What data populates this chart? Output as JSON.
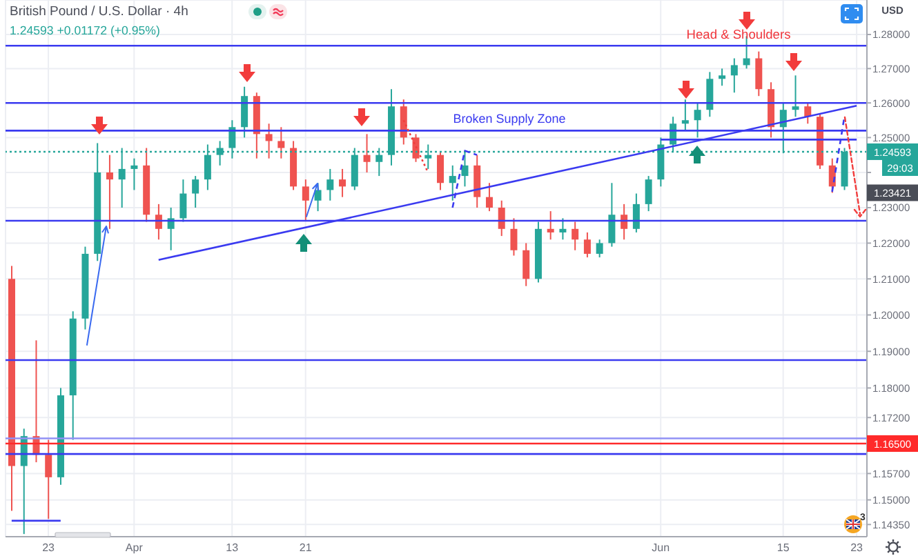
{
  "chart_data": {
    "type": "candlestick",
    "title": "British Pound / U.S. Dollar · 4h",
    "subtitle": "1.24593 +0.01172 (+0.95%)",
    "ylabel": "USD",
    "categories": [
      null,
      null,
      null,
      "23",
      null,
      null,
      null,
      null,
      null,
      null,
      "Apr",
      null,
      null,
      null,
      null,
      null,
      null,
      null,
      "13",
      null,
      null,
      null,
      null,
      null,
      "21",
      null,
      null,
      null,
      null,
      null,
      null,
      null,
      null,
      null,
      null,
      null,
      null,
      null,
      null,
      null,
      null,
      null,
      null,
      null,
      null,
      null,
      null,
      null,
      null,
      null,
      null,
      null,
      null,
      "Jun",
      null,
      null,
      null,
      null,
      null,
      null,
      null,
      null,
      null,
      "15",
      null,
      null,
      null,
      null,
      null,
      "23"
    ],
    "ohlc": [
      [
        1.21,
        1.2136,
        1.1471,
        1.159
      ],
      [
        1.159,
        1.169,
        1.141,
        1.167
      ],
      [
        1.167,
        1.193,
        1.16,
        1.162
      ],
      [
        1.162,
        1.166,
        1.145,
        1.156
      ],
      [
        1.156,
        1.18,
        1.154,
        1.178
      ],
      [
        1.178,
        1.201,
        1.166,
        1.199
      ],
      [
        1.199,
        1.219,
        1.196,
        1.217
      ],
      [
        1.217,
        1.2484,
        1.215,
        1.24
      ],
      [
        1.24,
        1.245,
        1.224,
        1.238
      ],
      [
        1.238,
        1.247,
        1.23,
        1.241
      ],
      [
        1.241,
        1.244,
        1.235,
        1.242
      ],
      [
        1.242,
        1.247,
        1.226,
        1.228
      ],
      [
        1.228,
        1.231,
        1.221,
        1.224
      ],
      [
        1.224,
        1.23,
        1.218,
        1.227
      ],
      [
        1.227,
        1.238,
        1.226,
        1.234
      ],
      [
        1.234,
        1.239,
        1.23,
        1.238
      ],
      [
        1.238,
        1.248,
        1.235,
        1.245
      ],
      [
        1.245,
        1.249,
        1.242,
        1.247
      ],
      [
        1.247,
        1.255,
        1.244,
        1.253
      ],
      [
        1.253,
        1.2647,
        1.25,
        1.262
      ],
      [
        1.262,
        1.263,
        1.244,
        1.251
      ],
      [
        1.251,
        1.254,
        1.244,
        1.249
      ],
      [
        1.249,
        1.253,
        1.244,
        1.247
      ],
      [
        1.247,
        1.249,
        1.235,
        1.236
      ],
      [
        1.236,
        1.238,
        1.2265,
        1.232
      ],
      [
        1.232,
        1.237,
        1.229,
        1.235
      ],
      [
        1.235,
        1.241,
        1.232,
        1.238
      ],
      [
        1.238,
        1.241,
        1.233,
        1.236
      ],
      [
        1.236,
        1.247,
        1.235,
        1.245
      ],
      [
        1.245,
        1.251,
        1.24,
        1.243
      ],
      [
        1.243,
        1.247,
        1.239,
        1.245
      ],
      [
        1.245,
        1.264,
        1.242,
        1.259
      ],
      [
        1.259,
        1.261,
        1.248,
        1.25
      ],
      [
        1.25,
        1.251,
        1.243,
        1.244
      ],
      [
        1.244,
        1.248,
        1.241,
        1.245
      ],
      [
        1.245,
        1.246,
        1.235,
        1.237
      ],
      [
        1.237,
        1.242,
        1.232,
        1.239
      ],
      [
        1.239,
        1.246,
        1.236,
        1.242
      ],
      [
        1.242,
        1.245,
        1.23,
        1.233
      ],
      [
        1.233,
        1.237,
        1.229,
        1.23
      ],
      [
        1.23,
        1.232,
        1.222,
        1.224
      ],
      [
        1.224,
        1.227,
        1.2165,
        1.218
      ],
      [
        1.218,
        1.22,
        1.208,
        1.21
      ],
      [
        1.21,
        1.226,
        1.209,
        1.224
      ],
      [
        1.224,
        1.229,
        1.221,
        1.223
      ],
      [
        1.223,
        1.227,
        1.221,
        1.224
      ],
      [
        1.224,
        1.226,
        1.218,
        1.221
      ],
      [
        1.221,
        1.223,
        1.216,
        1.217
      ],
      [
        1.217,
        1.221,
        1.216,
        1.22
      ],
      [
        1.22,
        1.237,
        1.219,
        1.228
      ],
      [
        1.228,
        1.231,
        1.221,
        1.224
      ],
      [
        1.224,
        1.234,
        1.223,
        1.231
      ],
      [
        1.231,
        1.239,
        1.229,
        1.238
      ],
      [
        1.238,
        1.25,
        1.236,
        1.248
      ],
      [
        1.248,
        1.256,
        1.246,
        1.254
      ],
      [
        1.254,
        1.261,
        1.252,
        1.255
      ],
      [
        1.255,
        1.26,
        1.25,
        1.258
      ],
      [
        1.258,
        1.269,
        1.256,
        1.267
      ],
      [
        1.267,
        1.27,
        1.265,
        1.268
      ],
      [
        1.268,
        1.273,
        1.263,
        1.271
      ],
      [
        1.271,
        1.2795,
        1.27,
        1.273
      ],
      [
        1.273,
        1.275,
        1.262,
        1.264
      ],
      [
        1.264,
        1.266,
        1.25,
        1.253
      ],
      [
        1.253,
        1.26,
        1.2455,
        1.258
      ],
      [
        1.258,
        1.268,
        1.256,
        1.259
      ],
      [
        1.259,
        1.26,
        1.254,
        1.256
      ],
      [
        1.256,
        1.257,
        1.241,
        1.242
      ],
      [
        1.242,
        1.244,
        1.2342,
        1.236
      ],
      [
        1.236,
        1.247,
        1.235,
        1.24593
      ],
      null
    ],
    "colors": [
      "#ef5350",
      "#26a69a",
      "#ef5350",
      "#ef5350",
      "#26a69a",
      "#26a69a",
      "#26a69a",
      "#26a69a",
      "#ef5350",
      "#26a69a",
      "#26a69a",
      "#ef5350",
      "#ef5350",
      "#26a69a",
      "#26a69a",
      "#26a69a",
      "#26a69a",
      "#26a69a",
      "#26a69a",
      "#26a69a",
      "#ef5350",
      "#ef5350",
      "#ef5350",
      "#ef5350",
      "#ef5350",
      "#26a69a",
      "#26a69a",
      "#ef5350",
      "#26a69a",
      "#ef5350",
      "#26a69a",
      "#26a69a",
      "#ef5350",
      "#ef5350",
      "#26a69a",
      "#ef5350",
      "#26a69a",
      "#26a69a",
      "#ef5350",
      "#ef5350",
      "#ef5350",
      "#ef5350",
      "#ef5350",
      "#26a69a",
      "#ef5350",
      "#26a69a",
      "#ef5350",
      "#ef5350",
      "#26a69a",
      "#26a69a",
      "#ef5350",
      "#26a69a",
      "#26a69a",
      "#26a69a",
      "#26a69a",
      "#26a69a",
      "#26a69a",
      "#26a69a",
      "#26a69a",
      "#26a69a",
      "#26a69a",
      "#ef5350",
      "#ef5350",
      "#26a69a",
      "#26a69a",
      "#ef5350",
      "#ef5350",
      "#ef5350",
      "#26a69a",
      null
    ],
    "series": [
      {
        "type": "line",
        "color": "#3a3af0",
        "values": [
          null,
          null,
          null,
          null,
          null,
          null,
          null,
          null,
          null,
          null,
          null,
          null,
          1.2153,
          null,
          null,
          null,
          null,
          null,
          null,
          null,
          null,
          null,
          null,
          null,
          null,
          null,
          null,
          null,
          null,
          null,
          null,
          null,
          null,
          null,
          null,
          null,
          null,
          null,
          null,
          null,
          null,
          null,
          null,
          null,
          null,
          null,
          null,
          null,
          null,
          null,
          null,
          null,
          null,
          null,
          null,
          null,
          null,
          null,
          null,
          null,
          null,
          null,
          null,
          null,
          null,
          null,
          null,
          null,
          null,
          1.2592
        ]
      },
      {
        "type": "line",
        "color": "#3a3af0",
        "values": [
          null,
          null,
          null,
          null,
          null,
          null,
          null,
          null,
          null,
          null,
          null,
          null,
          null,
          null,
          null,
          null,
          null,
          null,
          null,
          null,
          null,
          null,
          null,
          null,
          null,
          null,
          null,
          null,
          null,
          null,
          null,
          null,
          null,
          null,
          null,
          null,
          null,
          null,
          null,
          null,
          null,
          null,
          null,
          null,
          null,
          null,
          null,
          null,
          null,
          null,
          null,
          null,
          null,
          1.2494,
          null,
          null,
          null,
          null,
          null,
          null,
          null,
          null,
          null,
          null,
          null,
          null,
          null,
          null,
          null,
          1.2494
        ]
      },
      {
        "type": "line",
        "color": "#3a3af0",
        "values": [
          1.1445,
          null,
          null,
          null,
          1.1445,
          null,
          null,
          null,
          null,
          null,
          null,
          null,
          null,
          null,
          null,
          null,
          null,
          null,
          null,
          null,
          null,
          null,
          null,
          null,
          null,
          null,
          null,
          null,
          null,
          null,
          null,
          null,
          null,
          null,
          null,
          null,
          null,
          null,
          null,
          null,
          null,
          null,
          null,
          null,
          null,
          null,
          null,
          null,
          null,
          null,
          null,
          null,
          null,
          null,
          null,
          null,
          null,
          null,
          null,
          null,
          null,
          null,
          null,
          null,
          null,
          null,
          null,
          null,
          null,
          null
        ]
      },
      {
        "type": "line",
        "color": "#f23c3c",
        "line_style": "dotted",
        "values": [
          null,
          null,
          null,
          null,
          null,
          null,
          null,
          null,
          null,
          null,
          null,
          null,
          null,
          null,
          null,
          null,
          null,
          null,
          null,
          null,
          null,
          null,
          null,
          null,
          null,
          null,
          null,
          null,
          null,
          null,
          null,
          null,
          1.255,
          null,
          1.24,
          null,
          null,
          null,
          null,
          null,
          null,
          null,
          null,
          null,
          null,
          null,
          null,
          null,
          null,
          null,
          null,
          null,
          null,
          null,
          null,
          null,
          null,
          null,
          null,
          null,
          null,
          null,
          null,
          null,
          null,
          null,
          null,
          null,
          null,
          null
        ]
      },
      {
        "type": "line",
        "color": "#3a3af0",
        "line_style": "dashed",
        "values": [
          null,
          null,
          null,
          null,
          null,
          null,
          null,
          null,
          null,
          null,
          null,
          null,
          null,
          null,
          null,
          null,
          null,
          null,
          null,
          null,
          null,
          null,
          null,
          null,
          null,
          null,
          null,
          null,
          null,
          null,
          null,
          null,
          null,
          null,
          null,
          null,
          1.23,
          1.2462,
          1.245,
          null,
          null,
          null,
          null,
          null,
          null,
          null,
          null,
          null,
          null,
          null,
          null,
          null,
          null,
          null,
          null,
          null,
          null,
          null,
          null,
          null,
          null,
          null,
          null,
          null,
          null,
          null,
          null,
          null,
          null,
          null
        ]
      },
      {
        "type": "line",
        "color": "#3a3af0",
        "line_style": "dashed",
        "values": [
          null,
          null,
          null,
          null,
          null,
          null,
          null,
          null,
          null,
          null,
          null,
          null,
          null,
          null,
          null,
          null,
          null,
          null,
          null,
          null,
          null,
          null,
          null,
          null,
          null,
          null,
          null,
          null,
          null,
          null,
          null,
          null,
          null,
          null,
          null,
          null,
          null,
          null,
          null,
          null,
          null,
          null,
          null,
          null,
          null,
          null,
          null,
          null,
          null,
          null,
          null,
          null,
          null,
          null,
          null,
          null,
          null,
          null,
          null,
          null,
          null,
          null,
          null,
          null,
          null,
          null,
          null,
          1.2345,
          1.256,
          null
        ]
      }
    ],
    "ylim": [
      1.1403,
      1.2902
    ],
    "yticks": [
      {
        "value": 1.1435,
        "label": "1.14350"
      },
      {
        "value": 1.15,
        "label": "1.15000"
      },
      {
        "value": 1.157,
        "label": "1.15700"
      },
      {
        "value": 1.172,
        "label": "1.17200"
      },
      {
        "value": 1.18,
        "label": "1.18000"
      },
      {
        "value": 1.19,
        "label": "1.19000"
      },
      {
        "value": 1.2,
        "label": "1.20000"
      },
      {
        "value": 1.21,
        "label": "1.21000"
      },
      {
        "value": 1.22,
        "label": "1.22000"
      },
      {
        "value": 1.23,
        "label": "1.23000"
      },
      {
        "value": 1.24,
        "label": null
      },
      {
        "value": 1.25,
        "label": "1.25000"
      },
      {
        "value": 1.26,
        "label": "1.26000"
      },
      {
        "value": 1.27,
        "label": "1.27000"
      },
      {
        "value": 1.28,
        "label": "1.28000"
      }
    ],
    "log": true,
    "grid": true,
    "ref_lines": [
      {
        "axis": "y",
        "value": 1.2767,
        "color": "#3a3af0"
      },
      {
        "axis": "y",
        "value": 1.26,
        "color": "#3a3af0"
      },
      {
        "axis": "y",
        "value": 1.252,
        "color": "#3a3af0"
      },
      {
        "axis": "y",
        "value": 1.24593,
        "label": "1.24593",
        "color": "#26a69a",
        "line_style": "dotted"
      },
      {
        "axis": "y",
        "value": 1.2263,
        "color": "#3a3af0"
      },
      {
        "axis": "y",
        "value": 1.1876,
        "color": "#3a3af0"
      },
      {
        "axis": "y",
        "value": 1.1664,
        "color": "#9090f5"
      },
      {
        "axis": "y",
        "value": 1.165,
        "label": "1.16500",
        "color": "#ff2a2a"
      },
      {
        "axis": "y",
        "value": 1.1622,
        "color": "#3a3af0"
      }
    ],
    "annotations": [
      "Head & Shoulders",
      "Broken Supply Zone",
      "29:03",
      {
        "text": "1.23421",
        "y": 1.23421
      },
      "3"
    ]
  }
}
